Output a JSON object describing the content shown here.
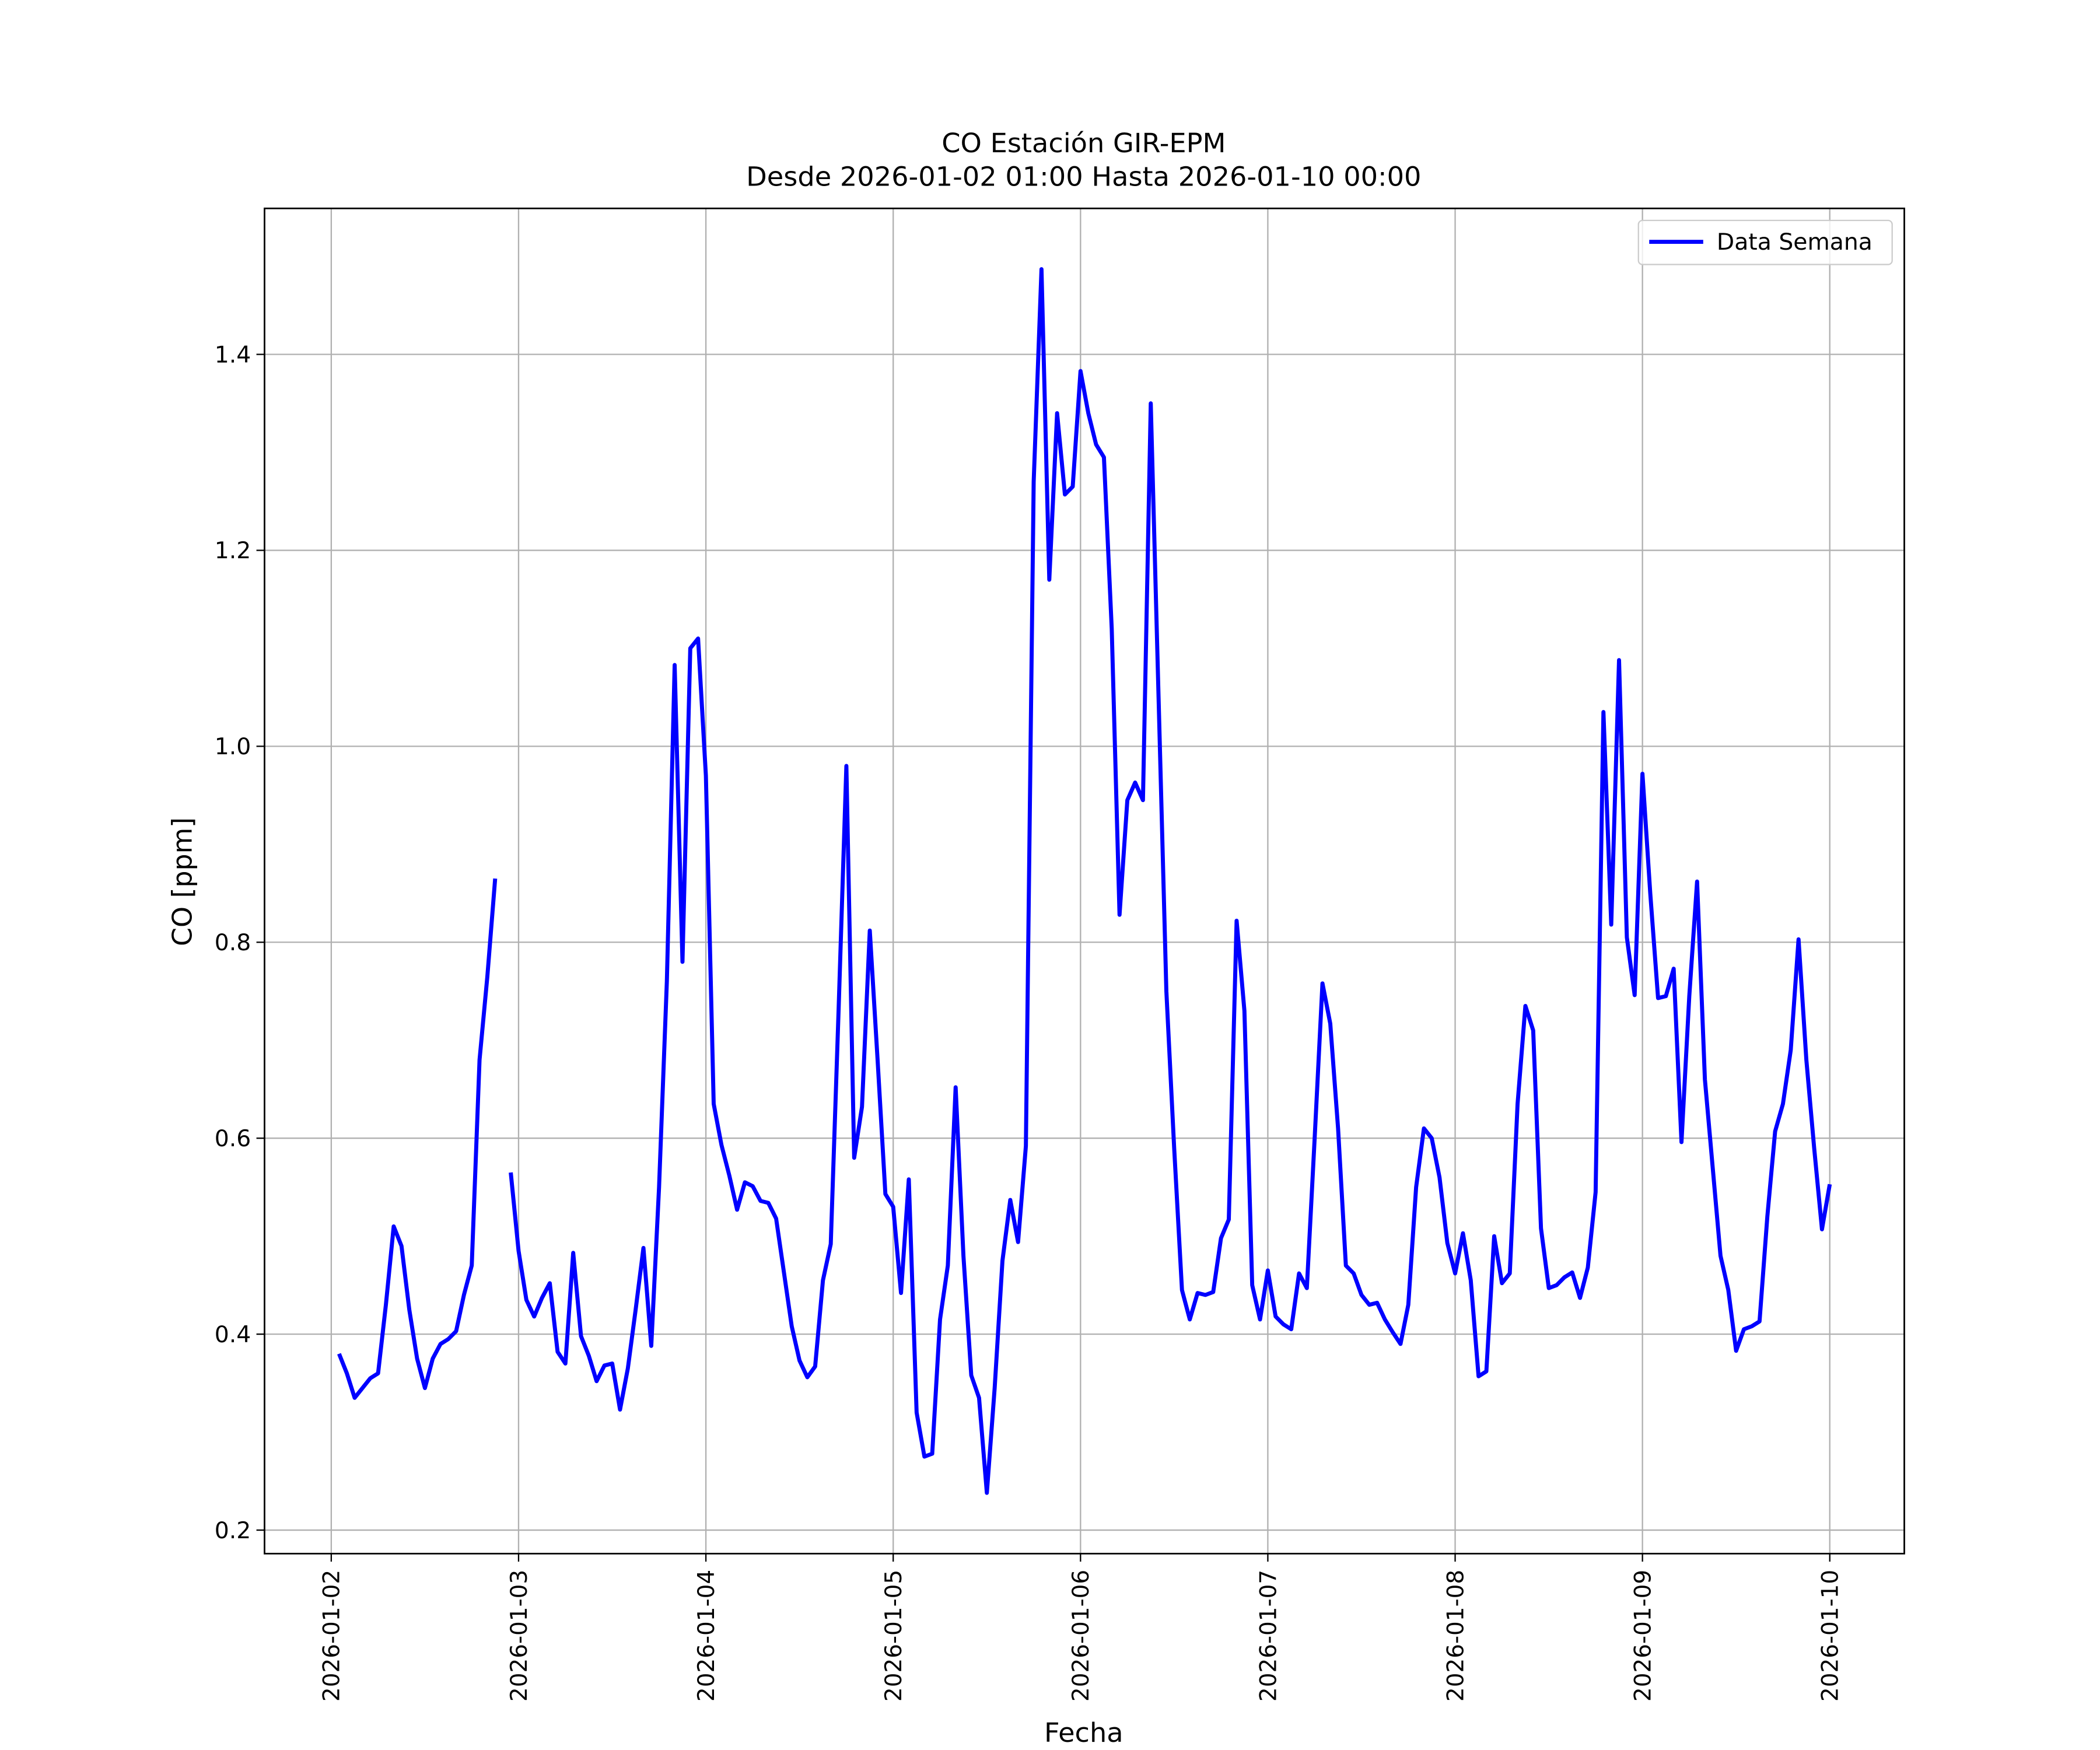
{
  "chart_data": {
    "type": "line",
    "title": "CO Estación GIR-EPM",
    "subtitle": "Desde 2026-01-02 01:00 Hasta 2026-01-10 00:00",
    "x_label": "Fecha",
    "y_label": "CO [ppm]",
    "x": [
      "2026-01-02 01:00",
      "2026-01-02 02:00",
      "2026-01-02 03:00",
      "2026-01-02 04:00",
      "2026-01-02 05:00",
      "2026-01-02 06:00",
      "2026-01-02 07:00",
      "2026-01-02 08:00",
      "2026-01-02 09:00",
      "2026-01-02 10:00",
      "2026-01-02 11:00",
      "2026-01-02 12:00",
      "2026-01-02 13:00",
      "2026-01-02 14:00",
      "2026-01-02 15:00",
      "2026-01-02 16:00",
      "2026-01-02 17:00",
      "2026-01-02 18:00",
      "2026-01-02 19:00",
      "2026-01-02 20:00",
      "2026-01-02 21:00",
      "2026-01-02 22:00",
      "2026-01-02 23:00",
      "2026-01-03 00:00",
      "2026-01-03 01:00",
      "2026-01-03 02:00",
      "2026-01-03 03:00",
      "2026-01-03 04:00",
      "2026-01-03 05:00",
      "2026-01-03 06:00",
      "2026-01-03 07:00",
      "2026-01-03 08:00",
      "2026-01-03 09:00",
      "2026-01-03 10:00",
      "2026-01-03 11:00",
      "2026-01-03 12:00",
      "2026-01-03 13:00",
      "2026-01-03 14:00",
      "2026-01-03 15:00",
      "2026-01-03 16:00",
      "2026-01-03 17:00",
      "2026-01-03 18:00",
      "2026-01-03 19:00",
      "2026-01-03 20:00",
      "2026-01-03 21:00",
      "2026-01-03 22:00",
      "2026-01-03 23:00",
      "2026-01-04 00:00",
      "2026-01-04 01:00",
      "2026-01-04 02:00",
      "2026-01-04 03:00",
      "2026-01-04 04:00",
      "2026-01-04 05:00",
      "2026-01-04 06:00",
      "2026-01-04 07:00",
      "2026-01-04 08:00",
      "2026-01-04 09:00",
      "2026-01-04 10:00",
      "2026-01-04 11:00",
      "2026-01-04 12:00",
      "2026-01-04 13:00",
      "2026-01-04 14:00",
      "2026-01-04 15:00",
      "2026-01-04 16:00",
      "2026-01-04 17:00",
      "2026-01-04 18:00",
      "2026-01-04 19:00",
      "2026-01-04 20:00",
      "2026-01-04 21:00",
      "2026-01-04 22:00",
      "2026-01-04 23:00",
      "2026-01-05 00:00",
      "2026-01-05 01:00",
      "2026-01-05 02:00",
      "2026-01-05 03:00",
      "2026-01-05 04:00",
      "2026-01-05 05:00",
      "2026-01-05 06:00",
      "2026-01-05 07:00",
      "2026-01-05 08:00",
      "2026-01-05 09:00",
      "2026-01-05 10:00",
      "2026-01-05 11:00",
      "2026-01-05 12:00",
      "2026-01-05 13:00",
      "2026-01-05 14:00",
      "2026-01-05 15:00",
      "2026-01-05 16:00",
      "2026-01-05 17:00",
      "2026-01-05 18:00",
      "2026-01-05 19:00",
      "2026-01-05 20:00",
      "2026-01-05 21:00",
      "2026-01-05 22:00",
      "2026-01-05 23:00",
      "2026-01-06 00:00",
      "2026-01-06 01:00",
      "2026-01-06 02:00",
      "2026-01-06 03:00",
      "2026-01-06 04:00",
      "2026-01-06 05:00",
      "2026-01-06 06:00",
      "2026-01-06 07:00",
      "2026-01-06 08:00",
      "2026-01-06 09:00",
      "2026-01-06 10:00",
      "2026-01-06 11:00",
      "2026-01-06 12:00",
      "2026-01-06 13:00",
      "2026-01-06 14:00",
      "2026-01-06 15:00",
      "2026-01-06 16:00",
      "2026-01-06 17:00",
      "2026-01-06 18:00",
      "2026-01-06 19:00",
      "2026-01-06 20:00",
      "2026-01-06 21:00",
      "2026-01-06 22:00",
      "2026-01-06 23:00",
      "2026-01-07 00:00",
      "2026-01-07 01:00",
      "2026-01-07 02:00",
      "2026-01-07 03:00",
      "2026-01-07 04:00",
      "2026-01-07 05:00",
      "2026-01-07 06:00",
      "2026-01-07 07:00",
      "2026-01-07 08:00",
      "2026-01-07 09:00",
      "2026-01-07 10:00",
      "2026-01-07 11:00",
      "2026-01-07 12:00",
      "2026-01-07 13:00",
      "2026-01-07 14:00",
      "2026-01-07 15:00",
      "2026-01-07 16:00",
      "2026-01-07 17:00",
      "2026-01-07 18:00",
      "2026-01-07 19:00",
      "2026-01-07 20:00",
      "2026-01-07 21:00",
      "2026-01-07 22:00",
      "2026-01-07 23:00",
      "2026-01-08 00:00",
      "2026-01-08 01:00",
      "2026-01-08 02:00",
      "2026-01-08 03:00",
      "2026-01-08 04:00",
      "2026-01-08 05:00",
      "2026-01-08 06:00",
      "2026-01-08 07:00",
      "2026-01-08 08:00",
      "2026-01-08 09:00",
      "2026-01-08 10:00",
      "2026-01-08 11:00",
      "2026-01-08 12:00",
      "2026-01-08 13:00",
      "2026-01-08 14:00",
      "2026-01-08 15:00",
      "2026-01-08 16:00",
      "2026-01-08 17:00",
      "2026-01-08 18:00",
      "2026-01-08 19:00",
      "2026-01-08 20:00",
      "2026-01-08 21:00",
      "2026-01-08 22:00",
      "2026-01-08 23:00",
      "2026-01-09 00:00",
      "2026-01-09 01:00",
      "2026-01-09 02:00",
      "2026-01-09 03:00",
      "2026-01-09 04:00",
      "2026-01-09 05:00",
      "2026-01-09 06:00",
      "2026-01-09 07:00",
      "2026-01-09 08:00",
      "2026-01-09 09:00",
      "2026-01-09 10:00",
      "2026-01-09 11:00",
      "2026-01-09 12:00",
      "2026-01-09 13:00",
      "2026-01-09 14:00",
      "2026-01-09 15:00",
      "2026-01-09 16:00",
      "2026-01-09 17:00",
      "2026-01-09 18:00",
      "2026-01-09 19:00",
      "2026-01-09 20:00",
      "2026-01-09 21:00",
      "2026-01-09 22:00",
      "2026-01-09 23:00",
      "2026-01-10 00:00"
    ],
    "series": [
      {
        "name": "Data Semana",
        "color": "#0000ff",
        "values": [
          0.38,
          0.36,
          0.335,
          0.345,
          0.355,
          0.36,
          0.43,
          0.51,
          0.49,
          0.425,
          0.375,
          0.345,
          0.375,
          0.39,
          0.395,
          0.403,
          0.44,
          0.47,
          0.68,
          0.765,
          0.865,
          null,
          0.565,
          0.485,
          0.435,
          0.418,
          0.437,
          0.452,
          0.382,
          0.37,
          0.483,
          0.398,
          0.378,
          0.352,
          0.368,
          0.37,
          0.323,
          0.365,
          0.425,
          0.488,
          0.388,
          0.55,
          0.76,
          1.083,
          0.78,
          1.1,
          1.11,
          0.97,
          0.635,
          0.593,
          0.562,
          0.527,
          0.555,
          0.551,
          0.536,
          0.534,
          0.518,
          0.463,
          0.408,
          0.373,
          0.356,
          0.367,
          0.455,
          0.492,
          0.73,
          0.98,
          0.58,
          0.632,
          0.812,
          0.68,
          0.543,
          0.53,
          0.442,
          0.558,
          0.32,
          0.275,
          0.278,
          0.415,
          0.47,
          0.652,
          0.48,
          0.358,
          0.335,
          0.238,
          0.345,
          0.475,
          0.537,
          0.494,
          0.592,
          1.27,
          1.487,
          1.17,
          1.34,
          1.257,
          1.265,
          1.383,
          1.34,
          1.308,
          1.295,
          1.12,
          0.828,
          0.945,
          0.963,
          0.945,
          1.35,
          1.05,
          0.75,
          0.59,
          0.445,
          0.415,
          0.442,
          0.44,
          0.443,
          0.498,
          0.517,
          0.822,
          0.73,
          0.45,
          0.415,
          0.465,
          0.418,
          0.41,
          0.405,
          0.462,
          0.447,
          0.6,
          0.758,
          0.717,
          0.61,
          0.47,
          0.462,
          0.44,
          0.43,
          0.432,
          0.415,
          0.402,
          0.39,
          0.43,
          0.55,
          0.61,
          0.6,
          0.56,
          0.493,
          0.462,
          0.503,
          0.455,
          0.357,
          0.362,
          0.5,
          0.452,
          0.462,
          0.635,
          0.735,
          0.71,
          0.508,
          0.447,
          0.45,
          0.458,
          0.463,
          0.437,
          0.468,
          0.545,
          1.035,
          0.818,
          1.088,
          0.805,
          0.746,
          0.972,
          0.85,
          0.743,
          0.745,
          0.773,
          0.596,
          0.745,
          0.862,
          0.66,
          0.57,
          0.48,
          0.445,
          0.383,
          0.405,
          0.408,
          0.413,
          0.52,
          0.607,
          0.635,
          0.69,
          0.803,
          0.68,
          0.59,
          0.507,
          0.553
        ]
      }
    ],
    "xlim": [
      "2026-01-01 15:27",
      "2026-01-10 09:33"
    ],
    "xticks": [
      "2026-01-02",
      "2026-01-03",
      "2026-01-04",
      "2026-01-05",
      "2026-01-06",
      "2026-01-07",
      "2026-01-08",
      "2026-01-09",
      "2026-01-10"
    ],
    "ylim": [
      0.176,
      1.549
    ],
    "yticks": [
      0.2,
      0.4,
      0.6,
      0.8,
      {
        "value": 1,
        "label": "1.0"
      },
      1.2,
      1.4
    ],
    "grid": true,
    "legend": "upper right"
  }
}
